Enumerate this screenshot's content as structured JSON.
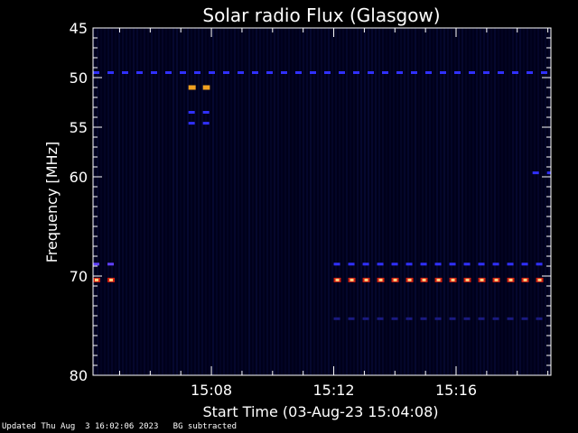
{
  "chart_data": {
    "type": "heatmap",
    "title": "Solar radio Flux (Glasgow)",
    "xlabel": "Start Time (03-Aug-23 15:04:08)",
    "ylabel": "Frequency [MHz]",
    "ylim": [
      45,
      80
    ],
    "xlim_minutes": [
      4.13,
      19.1
    ],
    "x_ticks": [
      {
        "minute": 8,
        "label": "15:08"
      },
      {
        "minute": 12,
        "label": "15:12"
      },
      {
        "minute": 16,
        "label": "15:16"
      }
    ],
    "y_ticks": [
      {
        "value": 45,
        "label": "45"
      },
      {
        "value": 50,
        "label": "50"
      },
      {
        "value": 55,
        "label": "55"
      },
      {
        "value": 60,
        "label": "60"
      },
      {
        "value": 70,
        "label": "70"
      },
      {
        "value": 80,
        "label": "80"
      }
    ],
    "features": [
      {
        "freq": 49.5,
        "start": 4.13,
        "end": 19.1,
        "color": "#3030ff",
        "intensity": "medium"
      },
      {
        "freq": 51.0,
        "start": 7.25,
        "end": 7.95,
        "color": "#f0a020",
        "intensity": "high"
      },
      {
        "freq": 53.5,
        "start": 7.25,
        "end": 7.95,
        "color": "#3030ff",
        "intensity": "medium"
      },
      {
        "freq": 54.6,
        "start": 7.25,
        "end": 7.95,
        "color": "#3030ff",
        "intensity": "medium"
      },
      {
        "freq": 59.6,
        "start": 18.5,
        "end": 19.1,
        "color": "#3030ff",
        "intensity": "medium"
      },
      {
        "freq": 68.8,
        "start": 4.13,
        "end": 5.0,
        "color": "#6040ff",
        "intensity": "medium"
      },
      {
        "freq": 68.8,
        "start": 12.0,
        "end": 19.1,
        "color": "#3030ff",
        "intensity": "medium"
      },
      {
        "freq": 70.4,
        "start": 4.13,
        "end": 5.0,
        "color": "#ff6030",
        "intensity": "high"
      },
      {
        "freq": 70.4,
        "start": 12.0,
        "end": 19.1,
        "color": "#ff6030",
        "intensity": "high"
      },
      {
        "freq": 74.3,
        "start": 12.0,
        "end": 19.1,
        "color": "#1a1a80",
        "intensity": "low"
      }
    ]
  },
  "footer": {
    "updated": "Updated Thu Aug  3 16:02:06 2023",
    "note": "BG subtracted"
  },
  "colors": {
    "background": "#00001a",
    "frame": "#ffffff"
  }
}
